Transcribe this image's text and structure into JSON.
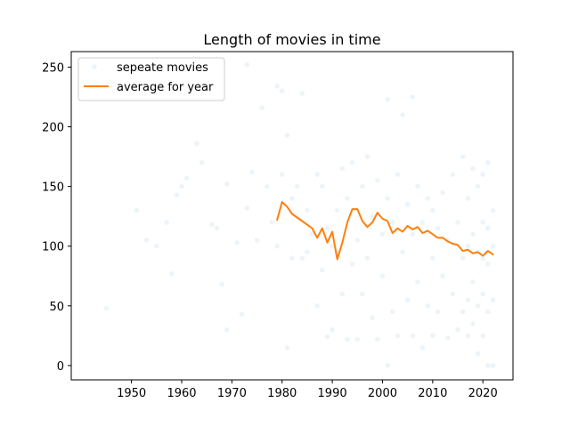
{
  "chart_data": {
    "type": "scatter",
    "title": "Length of movies in time",
    "xlabel": "",
    "ylabel": "",
    "xlim": [
      1938,
      2026
    ],
    "ylim": [
      -12,
      263
    ],
    "xticks": [
      1950,
      1960,
      1970,
      1980,
      1990,
      2000,
      2010,
      2020
    ],
    "yticks": [
      0,
      50,
      100,
      150,
      200,
      250
    ],
    "grid": false,
    "legend_position": "top-left",
    "series": [
      {
        "name": "sepeate movies",
        "kind": "scatter",
        "color": "#1f77b4",
        "alpha": 0.08,
        "points": [
          [
            1945,
            48
          ],
          [
            1951,
            130
          ],
          [
            1953,
            105
          ],
          [
            1955,
            100
          ],
          [
            1957,
            120
          ],
          [
            1958,
            77
          ],
          [
            1959,
            143
          ],
          [
            1960,
            150
          ],
          [
            1961,
            157
          ],
          [
            1963,
            186
          ],
          [
            1964,
            170
          ],
          [
            1966,
            118
          ],
          [
            1967,
            115
          ],
          [
            1968,
            68
          ],
          [
            1969,
            152
          ],
          [
            1969,
            30
          ],
          [
            1971,
            103
          ],
          [
            1972,
            43
          ],
          [
            1973,
            252
          ],
          [
            1973,
            132
          ],
          [
            1974,
            162
          ],
          [
            1975,
            105
          ],
          [
            1976,
            216
          ],
          [
            1977,
            150
          ],
          [
            1978,
            120
          ],
          [
            1979,
            234
          ],
          [
            1979,
            100
          ],
          [
            1980,
            230
          ],
          [
            1980,
            160
          ],
          [
            1981,
            193
          ],
          [
            1981,
            15
          ],
          [
            1982,
            140
          ],
          [
            1982,
            90
          ],
          [
            1983,
            150
          ],
          [
            1984,
            228
          ],
          [
            1984,
            90
          ],
          [
            1985,
            130
          ],
          [
            1985,
            95
          ],
          [
            1986,
            110
          ],
          [
            1987,
            160
          ],
          [
            1987,
            50
          ],
          [
            1988,
            80
          ],
          [
            1988,
            150
          ],
          [
            1989,
            24
          ],
          [
            1989,
            115
          ],
          [
            1990,
            100
          ],
          [
            1990,
            30
          ],
          [
            1991,
            130
          ],
          [
            1991,
            95
          ],
          [
            1992,
            165
          ],
          [
            1992,
            60
          ],
          [
            1993,
            140
          ],
          [
            1993,
            22
          ],
          [
            1994,
            85
          ],
          [
            1994,
            170
          ],
          [
            1995,
            105
          ],
          [
            1995,
            22
          ],
          [
            1996,
            150
          ],
          [
            1996,
            60
          ],
          [
            1997,
            175
          ],
          [
            1997,
            90
          ],
          [
            1998,
            125
          ],
          [
            1998,
            40
          ],
          [
            1999,
            155
          ],
          [
            1999,
            22
          ],
          [
            2000,
            110
          ],
          [
            2000,
            75
          ],
          [
            2001,
            223
          ],
          [
            2001,
            140
          ],
          [
            2001,
            0
          ],
          [
            2002,
            120
          ],
          [
            2002,
            45
          ],
          [
            2003,
            160
          ],
          [
            2003,
            25
          ],
          [
            2004,
            210
          ],
          [
            2004,
            95
          ],
          [
            2005,
            135
          ],
          [
            2005,
            55
          ],
          [
            2006,
            225
          ],
          [
            2006,
            110
          ],
          [
            2006,
            25
          ],
          [
            2007,
            150
          ],
          [
            2007,
            70
          ],
          [
            2008,
            120
          ],
          [
            2008,
            15
          ],
          [
            2009,
            140
          ],
          [
            2009,
            50
          ],
          [
            2010,
            130
          ],
          [
            2010,
            90
          ],
          [
            2010,
            25
          ],
          [
            2011,
            115
          ],
          [
            2011,
            45
          ],
          [
            2012,
            145
          ],
          [
            2012,
            75
          ],
          [
            2013,
            105
          ],
          [
            2013,
            23
          ],
          [
            2014,
            160
          ],
          [
            2014,
            60
          ],
          [
            2015,
            120
          ],
          [
            2015,
            30
          ],
          [
            2016,
            175
          ],
          [
            2016,
            90
          ],
          [
            2016,
            45
          ],
          [
            2017,
            140
          ],
          [
            2017,
            100
          ],
          [
            2017,
            55
          ],
          [
            2017,
            25
          ],
          [
            2018,
            165
          ],
          [
            2018,
            110
          ],
          [
            2018,
            70
          ],
          [
            2018,
            35
          ],
          [
            2019,
            150
          ],
          [
            2019,
            95
          ],
          [
            2019,
            50
          ],
          [
            2019,
            10
          ],
          [
            2020,
            160
          ],
          [
            2020,
            120
          ],
          [
            2020,
            90
          ],
          [
            2020,
            60
          ],
          [
            2020,
            25
          ],
          [
            2021,
            170
          ],
          [
            2021,
            115
          ],
          [
            2021,
            85
          ],
          [
            2021,
            45
          ],
          [
            2021,
            0
          ],
          [
            2022,
            130
          ],
          [
            2022,
            100
          ],
          [
            2022,
            55
          ],
          [
            2022,
            0
          ]
        ]
      },
      {
        "name": "average for year",
        "kind": "line",
        "color": "#ff7f0e",
        "points": [
          [
            1979,
            122
          ],
          [
            1980,
            137
          ],
          [
            1981,
            133
          ],
          [
            1982,
            127
          ],
          [
            1983,
            124
          ],
          [
            1984,
            121
          ],
          [
            1985,
            118
          ],
          [
            1986,
            115
          ],
          [
            1987,
            107
          ],
          [
            1988,
            115
          ],
          [
            1989,
            103
          ],
          [
            1990,
            112
          ],
          [
            1991,
            89
          ],
          [
            1992,
            103
          ],
          [
            1993,
            120
          ],
          [
            1994,
            131
          ],
          [
            1995,
            131
          ],
          [
            1996,
            121
          ],
          [
            1997,
            116
          ],
          [
            1998,
            120
          ],
          [
            1999,
            128
          ],
          [
            2000,
            123
          ],
          [
            2001,
            121
          ],
          [
            2002,
            111
          ],
          [
            2003,
            115
          ],
          [
            2004,
            112
          ],
          [
            2005,
            117
          ],
          [
            2006,
            114
          ],
          [
            2007,
            116
          ],
          [
            2008,
            111
          ],
          [
            2009,
            113
          ],
          [
            2010,
            110
          ],
          [
            2011,
            107
          ],
          [
            2012,
            107
          ],
          [
            2013,
            104
          ],
          [
            2014,
            102
          ],
          [
            2015,
            101
          ],
          [
            2016,
            96
          ],
          [
            2017,
            97
          ],
          [
            2018,
            94
          ],
          [
            2019,
            95
          ],
          [
            2020,
            92
          ],
          [
            2021,
            96
          ],
          [
            2022,
            93
          ]
        ]
      }
    ]
  }
}
